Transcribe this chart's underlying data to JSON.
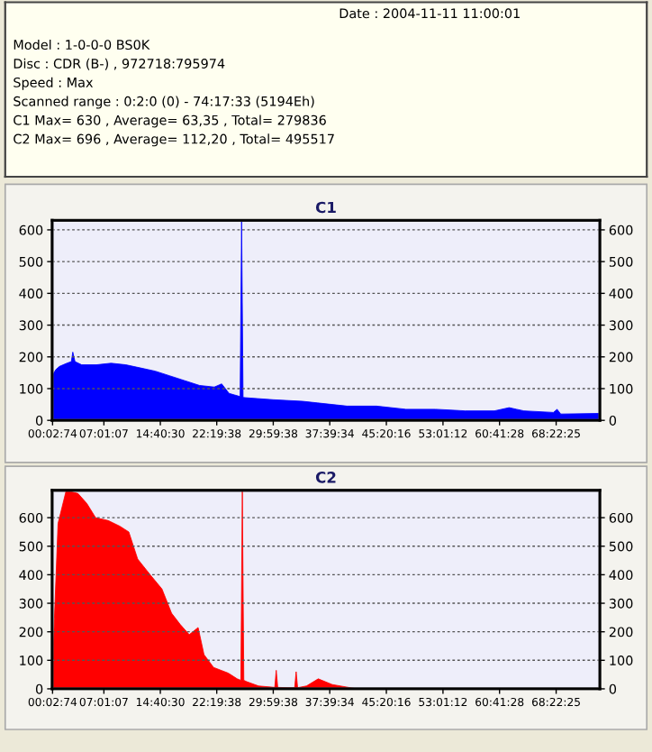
{
  "chart_data": [
    {
      "type": "other",
      "title": "Date : 2004-11-11 11:00:01",
      "annotations": [
        "Model : 1-0-0-0 BS0K",
        "Disc : CDR (B-) , 972718:795974",
        "Speed : Max",
        "Scanned range : 0:2:0 (0) - 74:17:33 (5194Eh)",
        "C1 Max= 630 , Average= 63,35 , Total= 279836",
        "C2 Max= 696 , Average= 112,20 , Total= 495517"
      ]
    },
    {
      "type": "area",
      "title": "C1",
      "grid": "y",
      "x": [
        0,
        0.5,
        1,
        2,
        2.6,
        2.8,
        3.1,
        4,
        6,
        8,
        10,
        12,
        14,
        16,
        18,
        20,
        22,
        23,
        24,
        25.5,
        25.7,
        25.9,
        27,
        30,
        34,
        36,
        40,
        44,
        48,
        52,
        56,
        60,
        62,
        63,
        64,
        68,
        68.5,
        69,
        74.3
      ],
      "series": [
        {
          "color": "#0000ff",
          "values": [
            140,
            160,
            170,
            180,
            185,
            215,
            185,
            175,
            175,
            180,
            175,
            165,
            155,
            140,
            125,
            110,
            105,
            115,
            85,
            75,
            630,
            72,
            70,
            65,
            60,
            55,
            45,
            45,
            35,
            35,
            30,
            30,
            40,
            35,
            30,
            25,
            35,
            20,
            22
          ]
        }
      ],
      "xlim": [
        0,
        74.3
      ],
      "ylim": [
        0,
        630
      ],
      "yticks": [
        0,
        100,
        200,
        300,
        400,
        500,
        600
      ],
      "y2lim": [
        0,
        630
      ],
      "y2ticks": [
        0,
        100,
        200,
        300,
        400,
        500,
        600
      ],
      "xticks": [
        {
          "value": 0.0539,
          "label": "00:02:74"
        },
        {
          "value": 7.0186,
          "label": "07:01:07"
        },
        {
          "value": 14.675,
          "label": "14:40:30"
        },
        {
          "value": 22.3272,
          "label": "22:19:38"
        },
        {
          "value": 29.9939,
          "label": "29:59:38"
        },
        {
          "value": 37.6594,
          "label": "37:39:34"
        },
        {
          "value": 45.3378,
          "label": "45:20:16"
        },
        {
          "value": 53.02,
          "label": "53:01:12"
        },
        {
          "value": 60.6911,
          "label": "60:41:28"
        },
        {
          "value": 68.3736,
          "label": "68:22:25"
        }
      ]
    },
    {
      "type": "area",
      "title": "C2",
      "grid": "y",
      "x": [
        0,
        0.3,
        0.8,
        1.9,
        3.5,
        4.7,
        5.9,
        7.6,
        9.2,
        10.4,
        11.6,
        13.3,
        14.9,
        16.2,
        17.4,
        18.6,
        19.8,
        20.6,
        21.9,
        23.9,
        25.1,
        25.6,
        25.8,
        26.0,
        26.4,
        28.0,
        30.2,
        30.4,
        30.6,
        32.0,
        32.9,
        33.1,
        33.3,
        34.5,
        36.1,
        38.0,
        41.3,
        74.3
      ],
      "series": [
        {
          "color": "#ff0000",
          "values": [
            0,
            245,
            580,
            695,
            685,
            650,
            600,
            590,
            570,
            550,
            455,
            400,
            350,
            265,
            225,
            190,
            215,
            120,
            75,
            55,
            35,
            30,
            696,
            30,
            25,
            10,
            5,
            65,
            5,
            4,
            4,
            60,
            4,
            10,
            35,
            15,
            0,
            0
          ]
        }
      ],
      "xlim": [
        0,
        74.3
      ],
      "ylim": [
        0,
        696
      ],
      "yticks": [
        0,
        100,
        200,
        300,
        400,
        500,
        600
      ],
      "y2lim": [
        0,
        696
      ],
      "y2ticks": [
        0,
        100,
        200,
        300,
        400,
        500,
        600
      ],
      "xticks": [
        {
          "value": 0.0539,
          "label": "00:02:74"
        },
        {
          "value": 7.0186,
          "label": "07:01:07"
        },
        {
          "value": 14.675,
          "label": "14:40:30"
        },
        {
          "value": 22.3272,
          "label": "22:19:38"
        },
        {
          "value": 29.9939,
          "label": "29:59:38"
        },
        {
          "value": 37.6594,
          "label": "37:39:34"
        },
        {
          "value": 45.3378,
          "label": "45:20:16"
        },
        {
          "value": 53.02,
          "label": "53:01:12"
        },
        {
          "value": 60.6911,
          "label": "60:41:28"
        },
        {
          "value": 68.3736,
          "label": "68:22:25"
        }
      ]
    }
  ]
}
